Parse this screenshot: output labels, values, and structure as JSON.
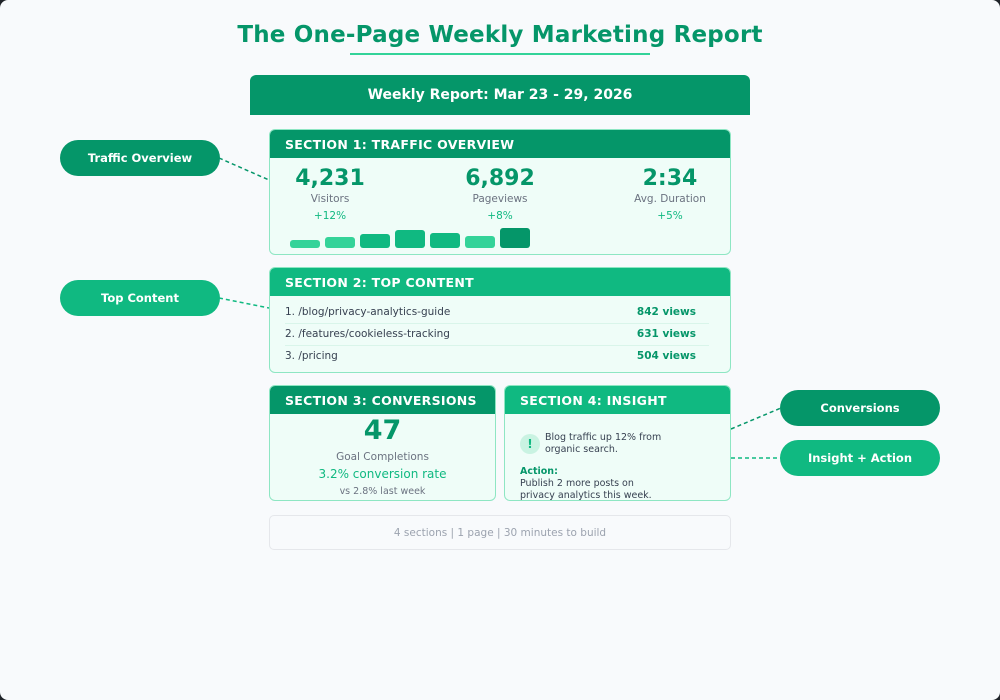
{
  "title": "The One-Page Weekly Marketing Report",
  "banner": "Weekly Report: Mar 23 - 29, 2026",
  "colors": {
    "primary": "#059669",
    "accent": "#10b981",
    "accent_light": "#34d399",
    "card_bg": "#effdf8",
    "card_border": "#8ee6c3",
    "page_bg": "#f8fafc"
  },
  "callouts": {
    "traffic": "Traffic Overview",
    "top_content": "Top Content",
    "conversions": "Conversions",
    "insight_action": "Insight + Action"
  },
  "section1": {
    "header": "SECTION 1: TRAFFIC OVERVIEW",
    "metrics": [
      {
        "value": "4,231",
        "label": "Visitors",
        "change": "+12%"
      },
      {
        "value": "6,892",
        "label": "Pageviews",
        "change": "+8%"
      },
      {
        "value": "2:34",
        "label": "Avg. Duration",
        "change": "+5%"
      }
    ],
    "sparkline": [
      {
        "height": 8,
        "color": "#34d399"
      },
      {
        "height": 11,
        "color": "#34d399"
      },
      {
        "height": 14,
        "color": "#10b981"
      },
      {
        "height": 18,
        "color": "#10b981"
      },
      {
        "height": 15,
        "color": "#10b981"
      },
      {
        "height": 12,
        "color": "#34d399"
      },
      {
        "height": 20,
        "color": "#059669"
      }
    ]
  },
  "section2": {
    "header": "SECTION 2: TOP CONTENT",
    "rows": [
      {
        "page": "1. /blog/privacy-analytics-guide",
        "views": "842 views"
      },
      {
        "page": "2. /features/cookieless-tracking",
        "views": "631 views"
      },
      {
        "page": "3. /pricing",
        "views": "504 views"
      }
    ]
  },
  "section3": {
    "header": "SECTION 3: CONVERSIONS",
    "value": "47",
    "label": "Goal Completions",
    "rate": "3.2% conversion rate",
    "comparison": "vs 2.8% last week"
  },
  "section4": {
    "header": "SECTION 4: INSIGHT",
    "icon": "!",
    "insight": "Blog traffic up 12% from organic search.",
    "action_label": "Action:",
    "action": "Publish 2 more posts on privacy analytics this week."
  },
  "footer": "4 sections | 1 page | 30 minutes to build"
}
